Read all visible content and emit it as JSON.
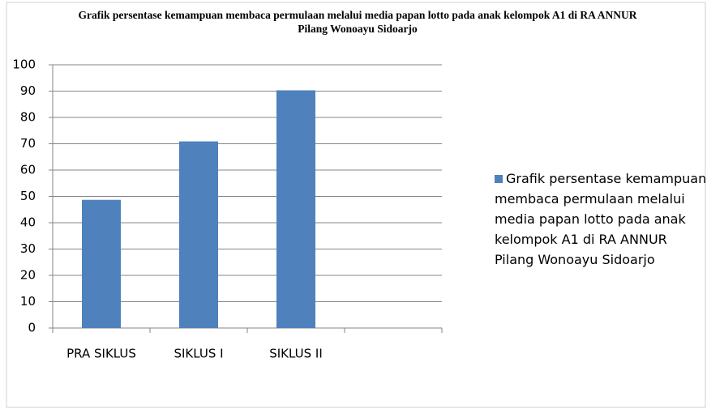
{
  "chart_data": {
    "type": "bar",
    "title": "Grafik persentase kemampuan membaca permulaan melalui media papan lotto pada anak kelompok A1 di RA ANNUR Pilang Wonoayu Sidoarjo",
    "categories": [
      "PRA SIKLUS",
      "SIKLUS I",
      "SIKLUS II",
      null
    ],
    "series": [
      {
        "name": "Grafik persentase kemampuan membaca permulaan melalui media papan lotto pada anak kelompok A1 di RA ANNUR Pilang Wonoayu Sidoarjo",
        "color": "#4f81bd",
        "values": [
          48.7,
          70.9,
          90.3,
          null
        ]
      }
    ],
    "ylim": [
      0,
      100
    ],
    "yticks": [
      0,
      10,
      20,
      30,
      40,
      50,
      60,
      70,
      80,
      90,
      100
    ],
    "grid": true,
    "legend": "right"
  }
}
